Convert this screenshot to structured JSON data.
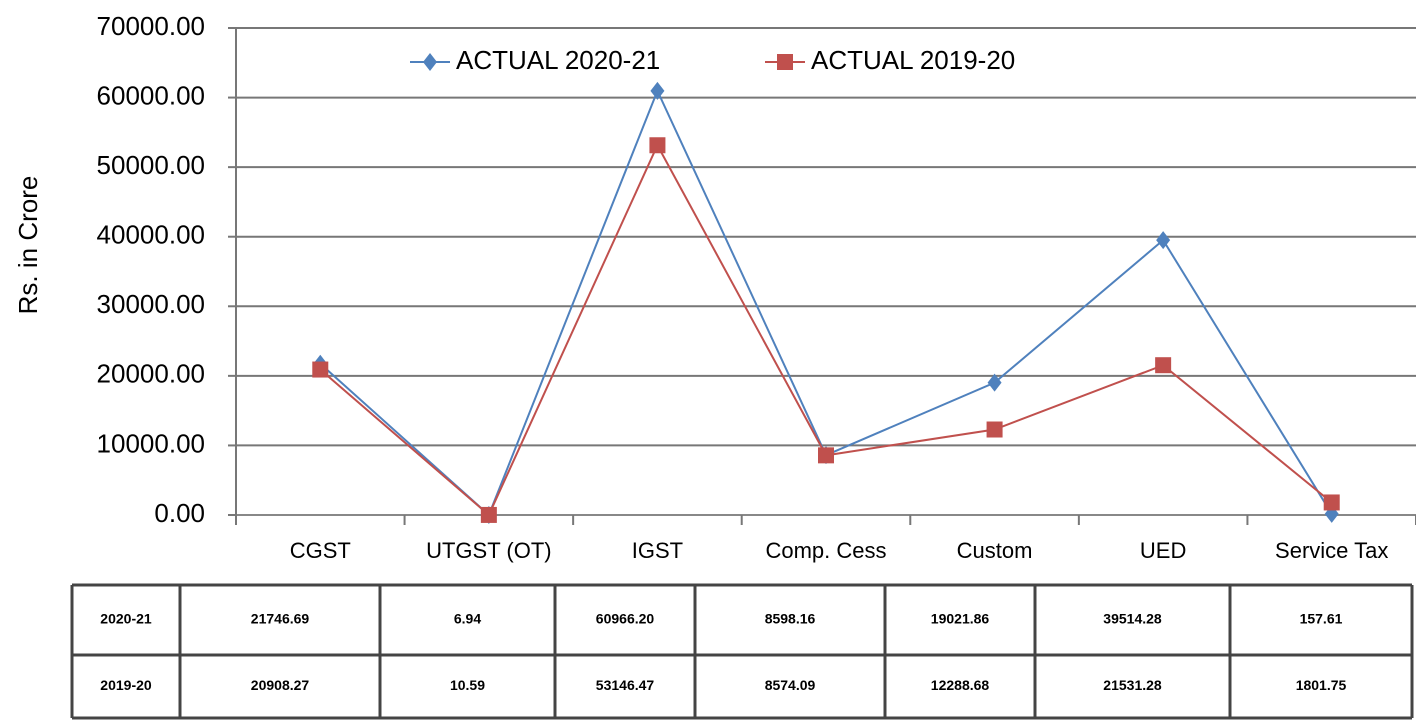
{
  "chart_data": {
    "type": "line",
    "y_label": "Rs. in Crore",
    "categories": [
      "CGST",
      "UTGST (OT)",
      "IGST",
      "Comp. Cess",
      "Custom",
      "UED",
      "Service Tax"
    ],
    "series": [
      {
        "name": "ACTUAL 2020-21",
        "color": "#4f81bd",
        "marker": "diamond",
        "row_label": "2020-21",
        "values": [
          21746.69,
          6.94,
          60966.2,
          8598.16,
          19021.86,
          39514.28,
          157.61
        ],
        "value_labels": [
          "21746.69",
          "6.94",
          "60966.20",
          "8598.16",
          "19021.86",
          "39514.28",
          "157.61"
        ]
      },
      {
        "name": "ACTUAL 2019-20",
        "color": "#c0504d",
        "marker": "square",
        "row_label": "2019-20",
        "values": [
          20908.27,
          10.59,
          53146.47,
          8574.09,
          12288.68,
          21531.28,
          1801.75
        ],
        "value_labels": [
          "20908.27",
          "10.59",
          "53146.47",
          "8574.09",
          "12288.68",
          "21531.28",
          "1801.75"
        ]
      }
    ],
    "ylim": [
      0,
      70000
    ],
    "yticks": [
      {
        "value": 0,
        "label": "0.00"
      },
      {
        "value": 10000,
        "label": "10000.00"
      },
      {
        "value": 20000,
        "label": "20000.00"
      },
      {
        "value": 30000,
        "label": "30000.00"
      },
      {
        "value": 40000,
        "label": "40000.00"
      },
      {
        "value": 50000,
        "label": "50000.00"
      },
      {
        "value": 60000,
        "label": "60000.00"
      },
      {
        "value": 70000,
        "label": "70000.00"
      }
    ],
    "grid": true,
    "legend": "top"
  }
}
